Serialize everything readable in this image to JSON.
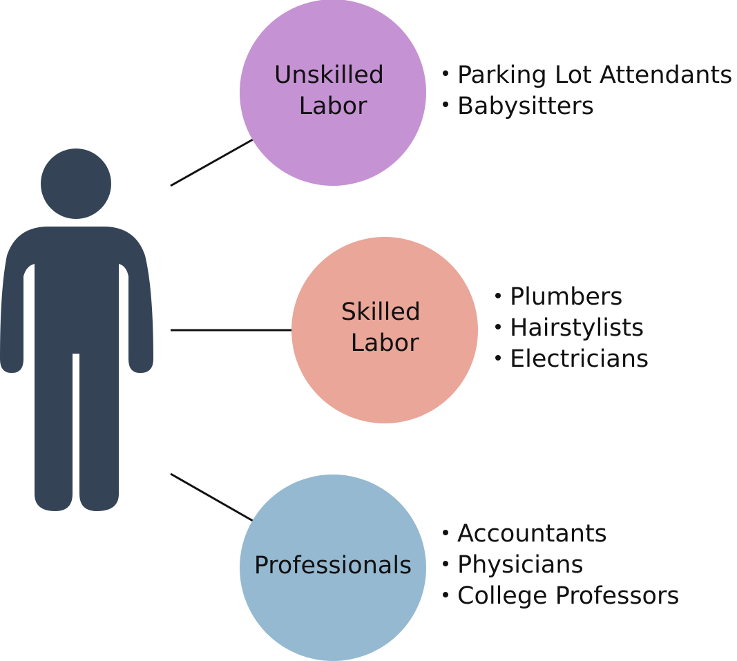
{
  "figure": {
    "icon": "person-silhouette-icon",
    "colors": {
      "person": "#344356",
      "connector": "#111111",
      "text": "#111111"
    }
  },
  "categories": [
    {
      "id": "unskilled",
      "label_lines": [
        "Unskilled",
        "Labor"
      ],
      "color": "#c592d3",
      "items": [
        "Parking Lot Attendants",
        "Babysitters"
      ]
    },
    {
      "id": "skilled",
      "label_lines": [
        "Skilled",
        "Labor"
      ],
      "color": "#e9a699",
      "items": [
        "Plumbers",
        "Hairstylists",
        "Electricians"
      ]
    },
    {
      "id": "professionals",
      "label_lines": [
        "Professionals"
      ],
      "color": "#94b9d1",
      "items": [
        "Accountants",
        "Physicians",
        "College Professors"
      ]
    }
  ]
}
